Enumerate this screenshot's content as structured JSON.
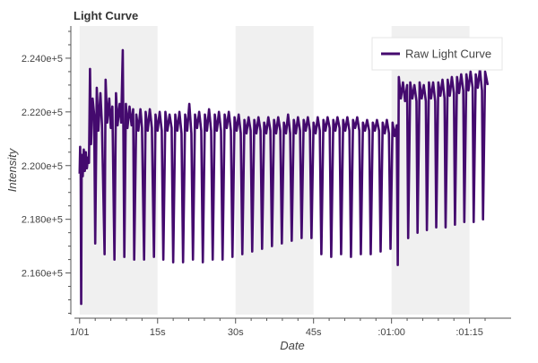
{
  "chart_data": {
    "type": "line",
    "title": "Light Curve",
    "xlabel": "Date",
    "ylabel": "Intensity",
    "xlim_seconds": [
      -1.0,
      83.0
    ],
    "ylim": [
      214450,
      225200
    ],
    "x_ticks": [
      {
        "t": 0,
        "label": "1/01"
      },
      {
        "t": 15,
        "label": "15s"
      },
      {
        "t": 30,
        "label": "30s"
      },
      {
        "t": 45,
        "label": "45s"
      },
      {
        "t": 60,
        "label": ":01:00"
      },
      {
        "t": 75,
        "label": ":01:15"
      }
    ],
    "y_ticks": [
      {
        "v": 216000,
        "label": "2.160e+5"
      },
      {
        "v": 218000,
        "label": "2.180e+5"
      },
      {
        "v": 220000,
        "label": "2.200e+5"
      },
      {
        "v": 222000,
        "label": "2.220e+5"
      },
      {
        "v": 224000,
        "label": "2.240e+5"
      }
    ],
    "shaded_bands_seconds": [
      [
        0,
        15
      ],
      [
        30,
        45
      ],
      [
        60,
        75
      ]
    ],
    "grid": false,
    "legend_position": "top-right",
    "series": [
      {
        "name": "Raw Light Curve",
        "color": "#440a6e",
        "x_seconds_range": [
          0,
          78.5
        ],
        "points": [
          [
            0.0,
            219700
          ],
          [
            0.1,
            220700
          ],
          [
            0.2,
            219900
          ],
          [
            0.3,
            214850
          ],
          [
            0.4,
            220400
          ],
          [
            0.6,
            219600
          ],
          [
            0.8,
            220600
          ],
          [
            1.0,
            219800
          ],
          [
            1.2,
            220500
          ],
          [
            1.4,
            219900
          ],
          [
            1.6,
            220300
          ],
          [
            1.8,
            220100
          ],
          [
            2.0,
            223600
          ],
          [
            2.2,
            220800
          ],
          [
            2.5,
            222500
          ],
          [
            2.8,
            221900
          ],
          [
            3.0,
            217100
          ],
          [
            3.3,
            222900
          ],
          [
            3.6,
            221300
          ],
          [
            4.0,
            222700
          ],
          [
            4.3,
            221500
          ],
          [
            4.8,
            216700
          ],
          [
            5.0,
            223200
          ],
          [
            5.3,
            221600
          ],
          [
            5.7,
            222500
          ],
          [
            6.0,
            221400
          ],
          [
            6.3,
            222200
          ],
          [
            6.7,
            216500
          ],
          [
            7.0,
            222700
          ],
          [
            7.3,
            221500
          ],
          [
            7.7,
            222300
          ],
          [
            8.0,
            221600
          ],
          [
            8.3,
            224300
          ],
          [
            8.6,
            216600
          ],
          [
            8.9,
            222300
          ],
          [
            9.2,
            221400
          ],
          [
            9.6,
            222200
          ],
          [
            10.0,
            221500
          ],
          [
            10.3,
            222100
          ],
          [
            10.5,
            216500
          ],
          [
            10.9,
            221900
          ],
          [
            11.3,
            221300
          ],
          [
            11.7,
            222100
          ],
          [
            12.0,
            221400
          ],
          [
            12.4,
            216500
          ],
          [
            12.7,
            222000
          ],
          [
            13.1,
            221300
          ],
          [
            13.5,
            222100
          ],
          [
            13.9,
            221400
          ],
          [
            14.3,
            216600
          ],
          [
            14.6,
            221900
          ],
          [
            15.0,
            221300
          ],
          [
            15.4,
            222000
          ],
          [
            15.8,
            221300
          ],
          [
            16.1,
            216500
          ],
          [
            16.5,
            222000
          ],
          [
            16.9,
            221300
          ],
          [
            17.3,
            221900
          ],
          [
            17.7,
            221400
          ],
          [
            18.0,
            216400
          ],
          [
            18.4,
            221900
          ],
          [
            18.8,
            221300
          ],
          [
            19.2,
            222000
          ],
          [
            19.6,
            221200
          ],
          [
            19.9,
            216400
          ],
          [
            20.3,
            221900
          ],
          [
            20.7,
            221300
          ],
          [
            21.1,
            222300
          ],
          [
            21.5,
            221200
          ],
          [
            21.8,
            216500
          ],
          [
            22.2,
            221900
          ],
          [
            22.6,
            221400
          ],
          [
            23.0,
            222000
          ],
          [
            23.4,
            221300
          ],
          [
            23.7,
            216400
          ],
          [
            24.1,
            221900
          ],
          [
            24.5,
            221300
          ],
          [
            24.9,
            222100
          ],
          [
            25.3,
            221300
          ],
          [
            25.6,
            216500
          ],
          [
            26.0,
            221900
          ],
          [
            26.4,
            221300
          ],
          [
            26.8,
            222000
          ],
          [
            27.2,
            221300
          ],
          [
            27.5,
            216500
          ],
          [
            27.9,
            221900
          ],
          [
            28.3,
            221400
          ],
          [
            28.7,
            222000
          ],
          [
            29.1,
            221300
          ],
          [
            29.4,
            216600
          ],
          [
            29.8,
            221800
          ],
          [
            30.2,
            221300
          ],
          [
            30.6,
            221900
          ],
          [
            31.0,
            221200
          ],
          [
            31.3,
            216700
          ],
          [
            31.7,
            221700
          ],
          [
            32.1,
            221200
          ],
          [
            32.5,
            221800
          ],
          [
            32.9,
            221300
          ],
          [
            33.2,
            216800
          ],
          [
            33.6,
            221700
          ],
          [
            34.0,
            221200
          ],
          [
            34.4,
            221800
          ],
          [
            34.8,
            221300
          ],
          [
            35.1,
            216900
          ],
          [
            35.5,
            221600
          ],
          [
            35.9,
            221200
          ],
          [
            36.3,
            221800
          ],
          [
            36.7,
            221300
          ],
          [
            37.0,
            217000
          ],
          [
            37.4,
            221700
          ],
          [
            37.8,
            221200
          ],
          [
            38.2,
            221800
          ],
          [
            38.6,
            221300
          ],
          [
            38.9,
            217100
          ],
          [
            39.3,
            221600
          ],
          [
            39.7,
            221200
          ],
          [
            40.1,
            221900
          ],
          [
            40.5,
            221200
          ],
          [
            40.8,
            217200
          ],
          [
            41.2,
            221700
          ],
          [
            41.6,
            221200
          ],
          [
            42.0,
            221800
          ],
          [
            42.4,
            221300
          ],
          [
            42.7,
            217300
          ],
          [
            43.1,
            221700
          ],
          [
            43.5,
            221300
          ],
          [
            43.9,
            221800
          ],
          [
            44.3,
            221300
          ],
          [
            44.6,
            217300
          ],
          [
            45.0,
            221600
          ],
          [
            45.4,
            221200
          ],
          [
            45.8,
            221800
          ],
          [
            46.2,
            221300
          ],
          [
            46.5,
            216700
          ],
          [
            46.9,
            221700
          ],
          [
            47.3,
            221300
          ],
          [
            47.7,
            221800
          ],
          [
            48.1,
            221400
          ],
          [
            48.4,
            216600
          ],
          [
            48.8,
            221700
          ],
          [
            49.2,
            221300
          ],
          [
            49.6,
            221800
          ],
          [
            50.0,
            221400
          ],
          [
            50.3,
            216700
          ],
          [
            50.7,
            221700
          ],
          [
            51.1,
            221300
          ],
          [
            51.5,
            221800
          ],
          [
            51.9,
            221300
          ],
          [
            52.2,
            216600
          ],
          [
            52.6,
            221700
          ],
          [
            53.0,
            221400
          ],
          [
            53.4,
            221800
          ],
          [
            53.8,
            221300
          ],
          [
            54.1,
            216700
          ],
          [
            54.5,
            221600
          ],
          [
            54.9,
            221300
          ],
          [
            55.3,
            221700
          ],
          [
            55.7,
            221300
          ],
          [
            56.0,
            216700
          ],
          [
            56.4,
            221600
          ],
          [
            56.8,
            221300
          ],
          [
            57.2,
            221700
          ],
          [
            57.6,
            221300
          ],
          [
            57.9,
            216800
          ],
          [
            58.3,
            221600
          ],
          [
            58.7,
            221200
          ],
          [
            59.1,
            221700
          ],
          [
            59.5,
            221200
          ],
          [
            59.8,
            216900
          ],
          [
            60.2,
            221600
          ],
          [
            60.6,
            221100
          ],
          [
            61.0,
            221500
          ],
          [
            61.2,
            216300
          ],
          [
            61.4,
            223300
          ],
          [
            61.8,
            222500
          ],
          [
            62.2,
            223100
          ],
          [
            62.6,
            222400
          ],
          [
            63.0,
            223000
          ],
          [
            63.2,
            217300
          ],
          [
            63.6,
            223100
          ],
          [
            64.0,
            222500
          ],
          [
            64.4,
            223000
          ],
          [
            64.8,
            222400
          ],
          [
            65.0,
            217500
          ],
          [
            65.4,
            223100
          ],
          [
            65.8,
            222500
          ],
          [
            66.2,
            223000
          ],
          [
            66.6,
            222400
          ],
          [
            66.8,
            217600
          ],
          [
            67.2,
            223100
          ],
          [
            67.6,
            222500
          ],
          [
            68.0,
            223100
          ],
          [
            68.4,
            222400
          ],
          [
            68.6,
            217700
          ],
          [
            69.0,
            223100
          ],
          [
            69.4,
            222600
          ],
          [
            69.8,
            223200
          ],
          [
            70.2,
            222500
          ],
          [
            70.4,
            217700
          ],
          [
            70.8,
            223200
          ],
          [
            71.2,
            222600
          ],
          [
            71.6,
            223300
          ],
          [
            72.0,
            222700
          ],
          [
            72.2,
            217800
          ],
          [
            72.6,
            223300
          ],
          [
            73.0,
            222700
          ],
          [
            73.4,
            223400
          ],
          [
            73.8,
            222800
          ],
          [
            74.0,
            217900
          ],
          [
            74.4,
            223400
          ],
          [
            74.8,
            222800
          ],
          [
            75.2,
            223500
          ],
          [
            75.6,
            222900
          ],
          [
            75.8,
            217900
          ],
          [
            76.2,
            223400
          ],
          [
            76.6,
            222900
          ],
          [
            77.0,
            223600
          ],
          [
            77.4,
            222800
          ],
          [
            77.6,
            218000
          ],
          [
            78.0,
            223500
          ],
          [
            78.5,
            223000
          ]
        ]
      }
    ]
  }
}
